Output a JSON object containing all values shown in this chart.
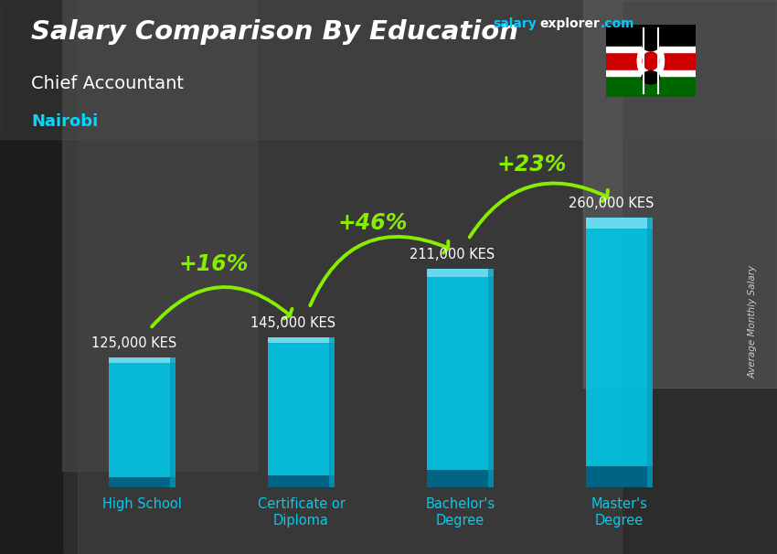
{
  "title": "Salary Comparison By Education",
  "subtitle": "Chief Accountant",
  "location": "Nairobi",
  "ylabel": "Average Monthly Salary",
  "categories": [
    "High School",
    "Certificate or\nDiploma",
    "Bachelor's\nDegree",
    "Master's\nDegree"
  ],
  "values": [
    125000,
    145000,
    211000,
    260000
  ],
  "value_labels": [
    "125,000 KES",
    "145,000 KES",
    "211,000 KES",
    "260,000 KES"
  ],
  "pct_labels": [
    "+16%",
    "+46%",
    "+23%"
  ],
  "bar_color": "#00c8e8",
  "bar_edge_color": "#00aacc",
  "bar_dark_color": "#0077aa",
  "arrow_color": "#88ee00",
  "pct_color": "#88ee00",
  "title_color": "#ffffff",
  "subtitle_color": "#ffffff",
  "location_color": "#00d8ff",
  "value_label_color": "#ffffff",
  "xtick_color": "#00ccee",
  "ylabel_color": "#cccccc",
  "bg_color": "#3a3a3a",
  "ylim": [
    0,
    320000
  ],
  "site_text_salary": "salary",
  "site_text_explorer": "explorer",
  "site_text_com": ".com",
  "site_color_salary": "#00ccff",
  "site_color_explorer": "#ffffff",
  "site_color_com": "#00ccff"
}
